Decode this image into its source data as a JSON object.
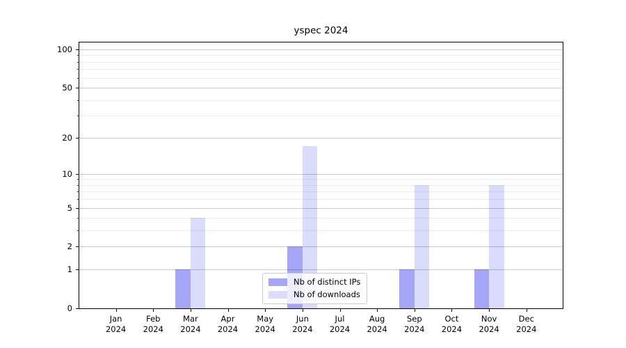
{
  "chart_data": {
    "type": "bar",
    "title": "yspec 2024",
    "categories": [
      "Jan",
      "Feb",
      "Mar",
      "Apr",
      "May",
      "Jun",
      "Jul",
      "Aug",
      "Sep",
      "Oct",
      "Nov",
      "Dec"
    ],
    "x_tick_labels": [
      [
        "Jan",
        "2024"
      ],
      [
        "Feb",
        "2024"
      ],
      [
        "Mar",
        "2024"
      ],
      [
        "Apr",
        "2024"
      ],
      [
        "May",
        "2024"
      ],
      [
        "Jun",
        "2024"
      ],
      [
        "Jul",
        "2024"
      ],
      [
        "Aug",
        "2024"
      ],
      [
        "Sep",
        "2024"
      ],
      [
        "Oct",
        "2024"
      ],
      [
        "Nov",
        "2024"
      ],
      [
        "Dec",
        "2024"
      ]
    ],
    "series": [
      {
        "name": "Nb of distinct IPs",
        "color": "rgba(0,0,230,0.35)",
        "values": [
          0,
          0,
          1,
          0,
          0,
          2,
          0,
          0,
          1,
          0,
          1,
          0
        ]
      },
      {
        "name": "Nb of downloads",
        "color": "rgba(0,0,230,0.14)",
        "values": [
          0,
          0,
          4,
          0,
          0,
          17,
          0,
          0,
          8,
          0,
          8,
          0
        ]
      }
    ],
    "xlabel": "",
    "ylabel": "",
    "y_scale": "log1p",
    "ylim": [
      0,
      113.3
    ],
    "y_major_ticks": [
      0,
      1,
      2,
      5,
      10,
      20,
      50,
      100
    ],
    "y_minor_ticks": [
      3,
      4,
      6,
      7,
      8,
      9,
      30,
      40,
      60,
      70,
      80,
      90
    ],
    "grid": "horizontal",
    "legend_position": "lower-center",
    "colors": {
      "major_grid": "#c9c9c9",
      "minor_grid": "#ececec",
      "spine": "#000000",
      "background": "#ffffff"
    }
  }
}
